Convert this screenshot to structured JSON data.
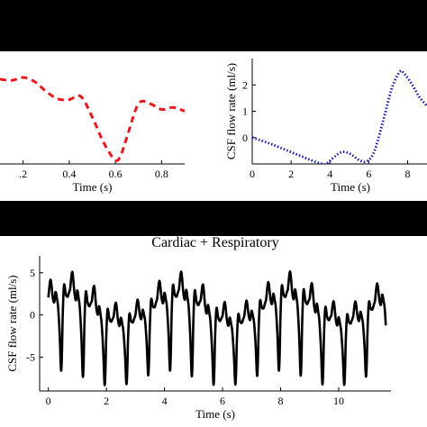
{
  "chart_data": [
    {
      "id": "chart-cardiac",
      "type": "line",
      "xlabel": "Time (s)",
      "ylabel": "",
      "xlim": [
        0.1,
        0.9
      ],
      "ylim": [
        -2.2,
        2.2
      ],
      "xticks": [
        0.2,
        0.4,
        0.6,
        0.8
      ],
      "xtick_labels": [
        ".2",
        "0.4",
        "0.6",
        "0.8"
      ],
      "yticks": [],
      "series": [
        {
          "color": "#e8181e",
          "style": "dashed",
          "x": [
            0.1,
            0.15,
            0.2,
            0.25,
            0.3,
            0.35,
            0.4,
            0.45,
            0.5,
            0.55,
            0.6,
            0.625,
            0.65,
            0.7,
            0.75,
            0.8,
            0.85,
            0.9
          ],
          "y": [
            1.25,
            1.2,
            1.32,
            1.15,
            0.75,
            0.45,
            0.42,
            0.55,
            -0.3,
            -1.35,
            -2.05,
            -1.8,
            -1.1,
            0.25,
            0.25,
            0.02,
            0.1,
            -0.05
          ]
        }
      ]
    },
    {
      "id": "chart-respiratory",
      "type": "line",
      "xlabel": "Time (s)",
      "ylabel": "CSF flow rate (ml/s)",
      "xlim": [
        0,
        9
      ],
      "ylim": [
        -1,
        3
      ],
      "xticks": [
        0,
        2,
        4,
        6,
        8
      ],
      "xtick_labels": [
        "0",
        "2",
        "4",
        "6",
        "8"
      ],
      "yticks": [
        0,
        1,
        2
      ],
      "series": [
        {
          "color": "#1a1aa6",
          "style": "dotted",
          "x": [
            0,
            0.5,
            1,
            1.5,
            2,
            2.5,
            3,
            3.5,
            3.8,
            4.2,
            4.6,
            5,
            5.5,
            5.9,
            6.3,
            6.8,
            7.2,
            7.6,
            7.8,
            8.2,
            8.6,
            9
          ],
          "y": [
            0,
            -0.12,
            -0.25,
            -0.4,
            -0.55,
            -0.7,
            -0.85,
            -0.98,
            -1.0,
            -0.75,
            -0.55,
            -0.6,
            -0.85,
            -0.9,
            -0.5,
            0.8,
            1.9,
            2.5,
            2.45,
            2.05,
            1.55,
            1.2
          ]
        }
      ]
    },
    {
      "id": "chart-cardiac-respiratory",
      "type": "line",
      "title": "Cardiac + Respiratory",
      "xlabel": "Time (s)",
      "ylabel": "CSF flow rate (ml/s)",
      "xlim": [
        -0.3,
        11.8
      ],
      "ylim": [
        -9,
        7
      ],
      "xticks": [
        0,
        2,
        4,
        6,
        8,
        10
      ],
      "xtick_labels": [
        "0",
        "2",
        "4",
        "6",
        "8",
        "10"
      ],
      "yticks": [
        -5,
        0,
        5
      ],
      "ytick_labels": [
        "-5",
        "0",
        "5"
      ],
      "series": [
        {
          "color": "#000000",
          "style": "solid",
          "period": 0.75,
          "cycles": 15.5,
          "resp_period": 3.8,
          "resp_amplitude": 1.6,
          "cycle_shape_t": [
            0.0,
            0.1,
            0.2,
            0.27,
            0.33,
            0.4,
            0.45,
            0.52,
            0.58,
            0.62,
            0.66,
            0.72,
            0.8,
            0.88,
            0.94,
            1.0
          ],
          "cycle_shape_y": [
            1.3,
            3.2,
            1.0,
            0.3,
            1.4,
            0.5,
            -0.5,
            -3.5,
            -7.4,
            -6.0,
            -1.5,
            1.8,
            0.8,
            0.5,
            0.9,
            1.3
          ]
        }
      ]
    }
  ]
}
